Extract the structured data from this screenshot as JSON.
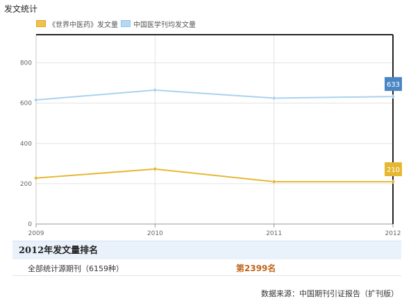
{
  "page_title": "发文统计",
  "legend": [
    {
      "label": "《世界中医药》发文量",
      "color": "#f0c24b"
    },
    {
      "label": "中国医学刊均发文量",
      "color": "#b6d9f3"
    }
  ],
  "chart_data": {
    "type": "line",
    "x": [
      "2009",
      "2010",
      "2011",
      "2012"
    ],
    "series": [
      {
        "name": "《世界中医药》发文量",
        "values": [
          228,
          273,
          210,
          210
        ],
        "color": "#e6b832",
        "end_label": "210"
      },
      {
        "name": "中国医学刊均发文量",
        "values": [
          616,
          665,
          625,
          633
        ],
        "color": "#a9d2ef",
        "end_label": "633",
        "end_label_color": "#4a86c5"
      }
    ],
    "yticks": [
      "0",
      "200",
      "400",
      "600",
      "800"
    ],
    "ylim": [
      0,
      940
    ],
    "grid": true,
    "title": "",
    "xlabel": "",
    "ylabel": ""
  },
  "ranking": {
    "header": "2012年发文量排名",
    "row_label": "全部统计源期刊（6159种）",
    "row_value": "第2399名"
  },
  "source_text": "数据来源：中国期刊引证报告（扩刊版）"
}
